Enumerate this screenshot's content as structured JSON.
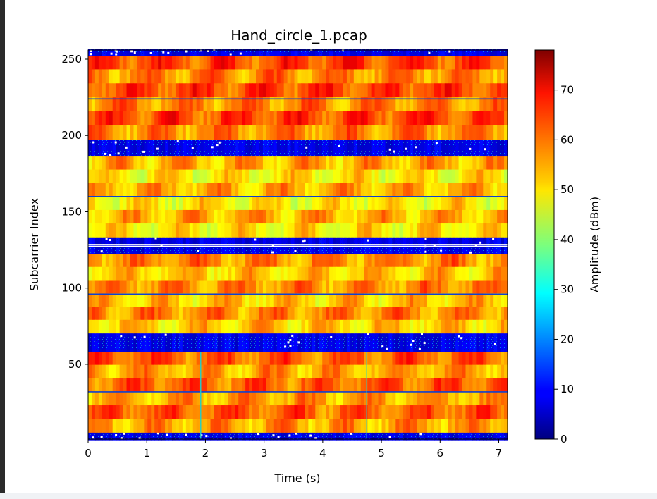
{
  "chart_data": {
    "type": "heatmap",
    "title": "Hand_circle_1.pcap",
    "xlabel": "Time (s)",
    "ylabel": "Subcarrier Index",
    "xlim": [
      0,
      7.15
    ],
    "ylim": [
      1,
      256
    ],
    "xticks": [
      "0",
      "1",
      "2",
      "3",
      "4",
      "5",
      "6",
      "7"
    ],
    "yticks": [
      "50",
      "100",
      "150",
      "200",
      "250"
    ],
    "colorbar": {
      "label": "Amplitude (dBm)",
      "colormap": "jet",
      "range": [
        0,
        78
      ],
      "ticks": [
        "0",
        "10",
        "20",
        "30",
        "40",
        "50",
        "60",
        "70"
      ]
    },
    "bands": [
      {
        "y": [
          1,
          5
        ],
        "amplitude": 8
      },
      {
        "y": [
          6,
          58
        ],
        "amplitude": 58
      },
      {
        "y": [
          59,
          70
        ],
        "amplitude": 8
      },
      {
        "y": [
          71,
          122
        ],
        "amplitude": 55
      },
      {
        "y": [
          123,
          133
        ],
        "amplitude": 8
      },
      {
        "y": [
          134,
          186
        ],
        "amplitude": 52
      },
      {
        "y": [
          187,
          197
        ],
        "amplitude": 8
      },
      {
        "y": [
          198,
          252
        ],
        "amplitude": 60
      },
      {
        "y": [
          253,
          256
        ],
        "amplitude": 8
      }
    ],
    "thin_lines": [
      32,
      96,
      160,
      224
    ],
    "vertical_lines_x": [
      1.92,
      4.75
    ]
  }
}
